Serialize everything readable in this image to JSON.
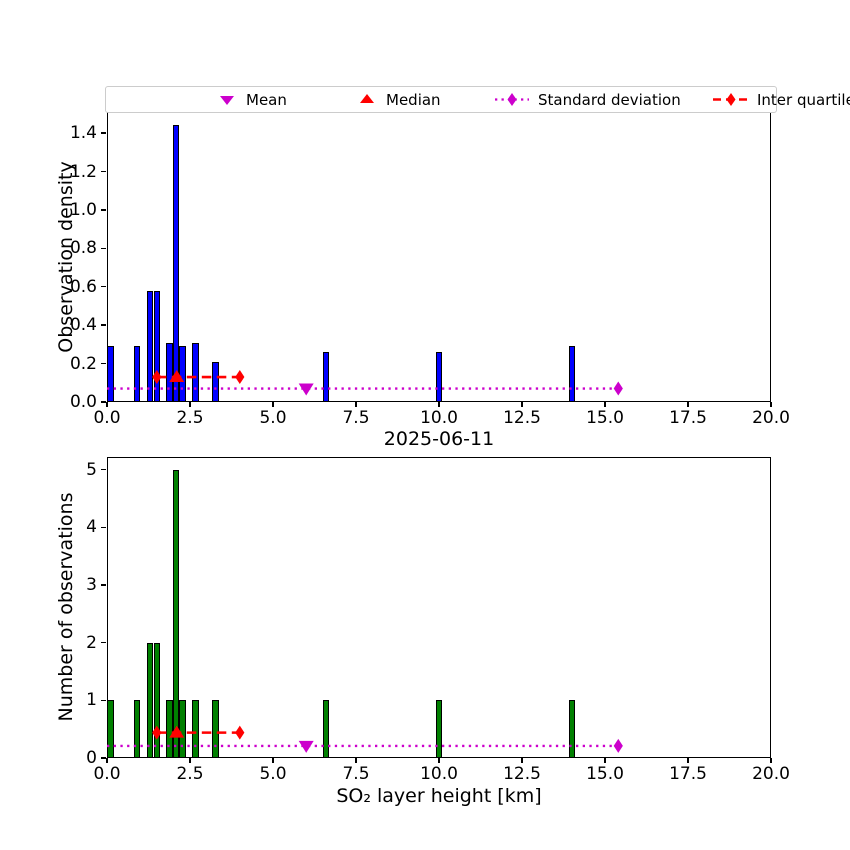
{
  "figure": {
    "title": "2025-06-11",
    "colors": {
      "bar_density": "#0000FF",
      "bar_counts": "#008000",
      "red": "#FF0000",
      "magenta": "#CC00CC",
      "axis": "#000000",
      "legend_border": "#CCCCCC"
    }
  },
  "legend": {
    "items": [
      {
        "label": "Mean",
        "marker": "triangle-down",
        "color": "#CC00CC"
      },
      {
        "label": "Median",
        "marker": "triangle-up",
        "color": "#FF0000"
      },
      {
        "label": "Standard deviation",
        "marker": "diamond-dotted-line",
        "color": "#CC00CC"
      },
      {
        "label": "Inter quartile range",
        "marker": "diamond-dashed-line",
        "color": "#FF0000"
      }
    ]
  },
  "chart_data": [
    {
      "type": "bar",
      "id": "observation-density-histogram",
      "ylabel": "Observation density",
      "xlim": [
        0,
        20
      ],
      "ylim": [
        0,
        1.51
      ],
      "xticks": [
        0,
        2.5,
        5,
        7.5,
        10,
        12.5,
        15,
        17.5,
        20
      ],
      "xtick_labels": [
        "0.0",
        "2.5",
        "5.0",
        "7.5",
        "10.0",
        "12.5",
        "15.0",
        "17.5",
        "20.0"
      ],
      "yticks": [
        0,
        0.2,
        0.4,
        0.6,
        0.8,
        1.0,
        1.2,
        1.4
      ],
      "ytick_labels": [
        "0.0",
        "0.2",
        "0.4",
        "0.6",
        "0.8",
        "1.0",
        "1.2",
        "1.4"
      ],
      "bar_color": "#0000FF",
      "bins": [
        {
          "x0": 0.0,
          "x1": 0.2,
          "y": 0.29
        },
        {
          "x0": 0.8,
          "x1": 1.0,
          "y": 0.29
        },
        {
          "x0": 1.2,
          "x1": 1.4,
          "y": 0.58
        },
        {
          "x0": 1.4,
          "x1": 1.6,
          "y": 0.58
        },
        {
          "x0": 1.78,
          "x1": 1.98,
          "y": 0.31
        },
        {
          "x0": 1.98,
          "x1": 2.18,
          "y": 1.44
        },
        {
          "x0": 2.18,
          "x1": 2.38,
          "y": 0.29
        },
        {
          "x0": 2.57,
          "x1": 2.77,
          "y": 0.31
        },
        {
          "x0": 3.17,
          "x1": 3.37,
          "y": 0.21
        },
        {
          "x0": 6.5,
          "x1": 6.7,
          "y": 0.26
        },
        {
          "x0": 9.9,
          "x1": 10.1,
          "y": 0.26
        },
        {
          "x0": 13.9,
          "x1": 14.1,
          "y": 0.29
        }
      ],
      "overlays": {
        "mean": {
          "x": 6.0,
          "y": 0.07,
          "color": "#CC00CC"
        },
        "median": {
          "x": 2.1,
          "y": 0.13,
          "color": "#FF0000"
        },
        "iqr": {
          "x0": 1.5,
          "x1": 4.0,
          "y": 0.13,
          "color": "#FF0000"
        },
        "std": {
          "x0": 0.0,
          "x1": 15.4,
          "y": 0.07,
          "color": "#CC00CC"
        }
      }
    },
    {
      "type": "bar",
      "id": "observation-count-histogram",
      "title": "2025-06-11",
      "ylabel": "Number of observations",
      "xlabel": "SO₂ layer height [km]",
      "xlim": [
        0,
        20
      ],
      "ylim": [
        0,
        5.22
      ],
      "xticks": [
        0,
        2.5,
        5,
        7.5,
        10,
        12.5,
        15,
        17.5,
        20
      ],
      "xtick_labels": [
        "0.0",
        "2.5",
        "5.0",
        "7.5",
        "10.0",
        "12.5",
        "15.0",
        "17.5",
        "20.0"
      ],
      "yticks": [
        0,
        1,
        2,
        3,
        4,
        5
      ],
      "ytick_labels": [
        "0",
        "1",
        "2",
        "3",
        "4",
        "5"
      ],
      "bar_color": "#008000",
      "bins": [
        {
          "x0": 0.0,
          "x1": 0.2,
          "y": 1
        },
        {
          "x0": 0.8,
          "x1": 1.0,
          "y": 1
        },
        {
          "x0": 1.2,
          "x1": 1.4,
          "y": 2
        },
        {
          "x0": 1.4,
          "x1": 1.6,
          "y": 2
        },
        {
          "x0": 1.78,
          "x1": 1.98,
          "y": 1
        },
        {
          "x0": 1.98,
          "x1": 2.18,
          "y": 5
        },
        {
          "x0": 2.18,
          "x1": 2.38,
          "y": 1
        },
        {
          "x0": 2.57,
          "x1": 2.77,
          "y": 1
        },
        {
          "x0": 3.17,
          "x1": 3.37,
          "y": 1
        },
        {
          "x0": 6.5,
          "x1": 6.7,
          "y": 1
        },
        {
          "x0": 9.9,
          "x1": 10.1,
          "y": 1
        },
        {
          "x0": 13.9,
          "x1": 14.1,
          "y": 1
        }
      ],
      "overlays": {
        "mean": {
          "x": 6.0,
          "y": 0.21,
          "color": "#CC00CC"
        },
        "median": {
          "x": 2.1,
          "y": 0.44,
          "color": "#FF0000"
        },
        "iqr": {
          "x0": 1.5,
          "x1": 4.0,
          "y": 0.44,
          "color": "#FF0000"
        },
        "std": {
          "x0": 0.0,
          "x1": 15.4,
          "y": 0.21,
          "color": "#CC00CC"
        }
      }
    }
  ]
}
